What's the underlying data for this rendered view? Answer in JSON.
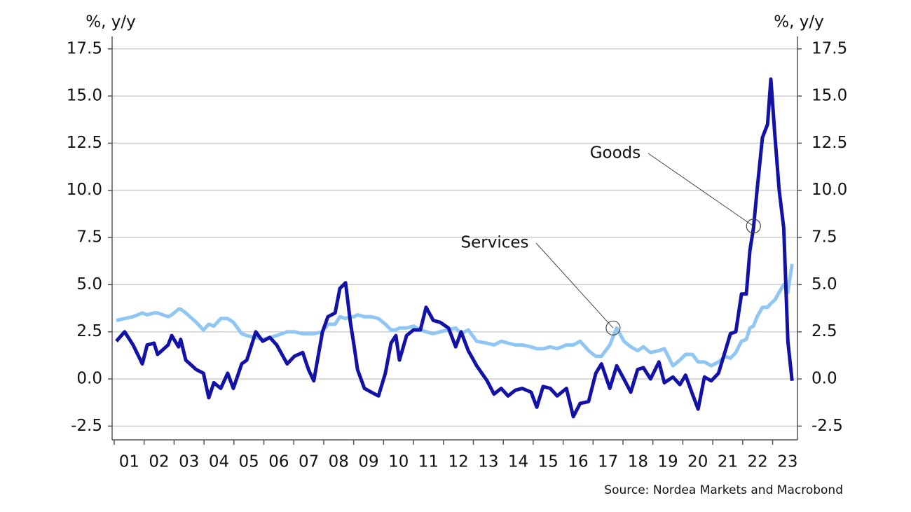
{
  "chart_data": {
    "type": "line",
    "y_label": "%, y/y",
    "y2_label": "%, y/y",
    "source": "Source: Nordea Markets and Macrobond",
    "x": [
      1.07,
      1.35,
      1.63,
      1.94,
      2.1,
      2.33,
      2.45,
      2.8,
      2.92,
      3.15,
      3.22,
      3.39,
      3.74,
      3.98,
      4.16,
      4.33,
      4.56,
      4.79,
      4.98,
      5.26,
      5.43,
      5.73,
      5.96,
      6.2,
      6.43,
      6.78,
      7.02,
      7.3,
      7.49,
      7.67,
      7.96,
      8.14,
      8.38,
      8.54,
      8.73,
      8.89,
      9.01,
      9.13,
      9.36,
      9.59,
      9.83,
      10.06,
      10.25,
      10.41,
      10.53,
      10.77,
      11.0,
      11.23,
      11.42,
      11.66,
      11.89,
      12.17,
      12.41,
      12.59,
      12.83,
      13.11,
      13.46,
      13.69,
      13.93,
      14.16,
      14.4,
      14.63,
      14.93,
      15.12,
      15.33,
      15.57,
      15.8,
      16.11,
      16.34,
      16.57,
      16.85,
      17.09,
      17.28,
      17.56,
      17.79,
      18.03,
      18.26,
      18.49,
      18.68,
      18.92,
      19.2,
      19.38,
      19.67,
      19.9,
      20.09,
      20.32,
      20.51,
      20.72,
      20.95,
      21.19,
      21.42,
      21.59,
      21.77,
      21.96,
      22.12,
      22.24,
      22.36,
      22.48,
      22.66,
      22.83,
      22.94,
      23.08,
      23.22,
      23.37,
      23.51,
      23.65
    ],
    "series": [
      {
        "name": "Goods",
        "color": "#1212a6",
        "values": [
          2.0,
          2.5,
          1.8,
          0.8,
          1.8,
          1.9,
          1.3,
          1.8,
          2.3,
          1.7,
          2.1,
          1.0,
          0.5,
          0.3,
          -1.0,
          -0.2,
          -0.5,
          0.3,
          -0.5,
          0.8,
          1.0,
          2.5,
          2.0,
          2.2,
          1.8,
          0.8,
          1.2,
          1.4,
          0.5,
          -0.1,
          2.5,
          3.3,
          3.5,
          4.8,
          5.1,
          3.0,
          1.8,
          0.5,
          -0.5,
          -0.7,
          -0.9,
          0.3,
          1.9,
          2.3,
          1.0,
          2.3,
          2.6,
          2.6,
          3.8,
          3.1,
          3.0,
          2.7,
          1.7,
          2.5,
          1.5,
          0.7,
          -0.1,
          -0.8,
          -0.5,
          -0.9,
          -0.6,
          -0.5,
          -0.7,
          -1.5,
          -0.4,
          -0.5,
          -0.9,
          -0.5,
          -2.0,
          -1.3,
          -1.2,
          0.3,
          0.8,
          -0.5,
          0.7,
          0.0,
          -0.7,
          0.5,
          0.6,
          0.0,
          0.9,
          -0.2,
          0.1,
          -0.3,
          0.2,
          -0.8,
          -1.6,
          0.1,
          -0.1,
          0.3,
          1.5,
          2.4,
          2.5,
          4.5,
          4.5,
          6.8,
          8.0,
          10.0,
          12.8,
          13.5,
          15.9,
          12.8,
          10.0,
          8.0,
          2.0,
          -0.1
        ]
      },
      {
        "name": "Services",
        "color": "#8fc6f4",
        "values": [
          3.1,
          3.2,
          3.3,
          3.5,
          3.4,
          3.5,
          3.5,
          3.3,
          3.4,
          3.7,
          3.7,
          3.5,
          3.0,
          2.6,
          2.9,
          2.8,
          3.2,
          3.2,
          3.0,
          2.4,
          2.3,
          2.2,
          2.1,
          2.2,
          2.3,
          2.5,
          2.5,
          2.4,
          2.4,
          2.4,
          2.5,
          2.9,
          2.9,
          3.3,
          3.2,
          3.3,
          3.3,
          3.4,
          3.3,
          3.3,
          3.2,
          2.9,
          2.6,
          2.6,
          2.7,
          2.7,
          2.8,
          2.6,
          2.5,
          2.4,
          2.5,
          2.6,
          2.7,
          2.4,
          2.6,
          2.0,
          1.9,
          1.8,
          2.0,
          1.9,
          1.8,
          1.8,
          1.7,
          1.6,
          1.6,
          1.7,
          1.6,
          1.8,
          1.8,
          2.0,
          1.5,
          1.2,
          1.2,
          1.8,
          2.7,
          2.0,
          1.7,
          1.5,
          1.7,
          1.4,
          1.5,
          1.6,
          0.7,
          1.0,
          1.3,
          1.3,
          0.9,
          0.9,
          0.7,
          0.9,
          1.2,
          1.1,
          1.4,
          2.0,
          2.1,
          2.7,
          2.8,
          3.3,
          3.8,
          3.8,
          4.0,
          4.2,
          4.6,
          5.0,
          4.6,
          6.1
        ]
      }
    ],
    "annotations": [
      {
        "text": "Goods",
        "x": 22.36,
        "y": 8.1
      },
      {
        "text": "Services",
        "x": 17.67,
        "y": 2.7
      }
    ],
    "xlim": [
      0.93,
      23.83
    ],
    "xticks": [
      {
        "value": 1,
        "label": "01"
      },
      {
        "value": 2,
        "label": "02"
      },
      {
        "value": 3,
        "label": "03"
      },
      {
        "value": 4,
        "label": "04"
      },
      {
        "value": 5,
        "label": "05"
      },
      {
        "value": 6,
        "label": "06"
      },
      {
        "value": 7,
        "label": "07"
      },
      {
        "value": 8,
        "label": "08"
      },
      {
        "value": 9,
        "label": "09"
      },
      {
        "value": 10,
        "label": "10"
      },
      {
        "value": 11,
        "label": "11"
      },
      {
        "value": 12,
        "label": "12"
      },
      {
        "value": 13,
        "label": "13"
      },
      {
        "value": 14,
        "label": "14"
      },
      {
        "value": 15,
        "label": "15"
      },
      {
        "value": 16,
        "label": "16"
      },
      {
        "value": 17,
        "label": "17"
      },
      {
        "value": 18,
        "label": "18"
      },
      {
        "value": 19,
        "label": "19"
      },
      {
        "value": 20,
        "label": "20"
      },
      {
        "value": 21,
        "label": "21"
      },
      {
        "value": 22,
        "label": "22"
      },
      {
        "value": 23,
        "label": "23"
      }
    ],
    "ylim": [
      -3.23,
      18.16
    ],
    "yticks": [
      -2.5,
      {
        "value": 0,
        "label": "0.0"
      },
      2.5,
      {
        "value": 5,
        "label": "5.0"
      },
      7.5,
      {
        "value": 10,
        "label": "10.0"
      },
      12.5,
      {
        "value": 15,
        "label": "15.0"
      },
      17.5
    ],
    "y2lim": [
      -3.23,
      18.16
    ],
    "y2ticks": [
      -2.5,
      {
        "value": 0,
        "label": "0.0"
      },
      2.5,
      {
        "value": 5,
        "label": "5.0"
      },
      7.5,
      {
        "value": 10,
        "label": "10.0"
      },
      12.5,
      {
        "value": 15,
        "label": "15.0"
      },
      17.5
    ],
    "grid": true
  }
}
